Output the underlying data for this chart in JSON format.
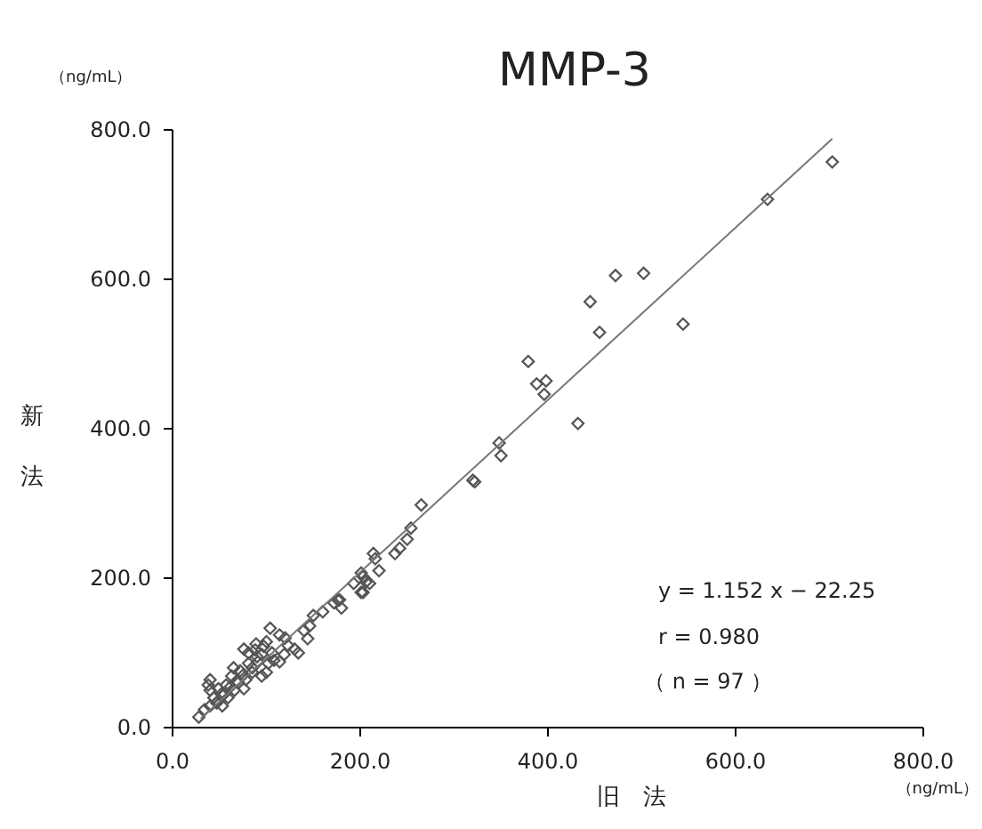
{
  "chart_data": {
    "type": "scatter",
    "title": "MMP-3",
    "xlabel": "旧　法",
    "ylabel": "新法",
    "annotations": [
      "（ng/mL）",
      "（ng/mL）",
      "y = 1.152 x − 22.25",
      "r = 0.980",
      "（ n = 97 ）"
    ],
    "xlim": [
      0,
      800
    ],
    "ylim": [
      0,
      800
    ],
    "xticks": [
      {
        "value": 0,
        "label": "0.0"
      },
      {
        "value": 200,
        "label": "200.0"
      },
      {
        "value": 400,
        "label": "400.0"
      },
      {
        "value": 600,
        "label": "600.0"
      },
      {
        "value": 800,
        "label": "800.0"
      }
    ],
    "yticks": [
      {
        "value": 0,
        "label": "0.0"
      },
      {
        "value": 200,
        "label": "200.0"
      },
      {
        "value": 400,
        "label": "400.0"
      },
      {
        "value": 600,
        "label": "600.0"
      },
      {
        "value": 800,
        "label": "800.0"
      }
    ],
    "grid": false,
    "series": [
      {
        "color": "#555555",
        "marker": "diamond",
        "x": [
          703,
          634,
          544,
          455,
          445,
          472,
          502,
          379,
          388,
          398,
          396,
          432,
          348,
          350,
          320,
          322,
          265,
          254,
          250,
          242,
          237,
          214,
          216,
          220,
          201,
          206,
          193,
          201,
          176,
          172,
          203,
          210,
          203,
          178,
          180,
          150,
          146,
          144,
          134,
          104,
          114,
          89,
          97,
          95,
          106,
          114,
          102,
          91,
          81,
          72,
          63,
          68,
          78,
          57,
          49,
          40,
          38,
          40,
          44,
          47,
          40,
          34,
          28,
          53,
          59,
          66,
          76,
          85,
          95,
          100,
          81,
          76,
          119,
          123,
          55,
          62,
          70,
          85,
          90,
          120,
          130,
          160,
          140,
          100,
          108,
          75,
          48,
          52,
          65,
          88
        ],
        "values": [
          757,
          707,
          540,
          529,
          570,
          605,
          608,
          490,
          460,
          464,
          446,
          407,
          381,
          364,
          331,
          329,
          298,
          267,
          252,
          240,
          233,
          233,
          226,
          210,
          207,
          195,
          193,
          181,
          171,
          167,
          202,
          193,
          181,
          171,
          160,
          150,
          136,
          119,
          100,
          133,
          124,
          112,
          109,
          98,
          100,
          88,
          86,
          88,
          86,
          76,
          69,
          62,
          64,
          57,
          52,
          64,
          57,
          50,
          40,
          33,
          29,
          24,
          14,
          29,
          40,
          50,
          52,
          74,
          69,
          74,
          100,
          105,
          98,
          110,
          45,
          55,
          60,
          80,
          95,
          120,
          105,
          155,
          130,
          115,
          90,
          70,
          35,
          45,
          80,
          104
        ]
      },
      {
        "type": "line",
        "color": "#777777",
        "x": [
          30,
          703
        ],
        "values": [
          12,
          788
        ]
      }
    ]
  }
}
